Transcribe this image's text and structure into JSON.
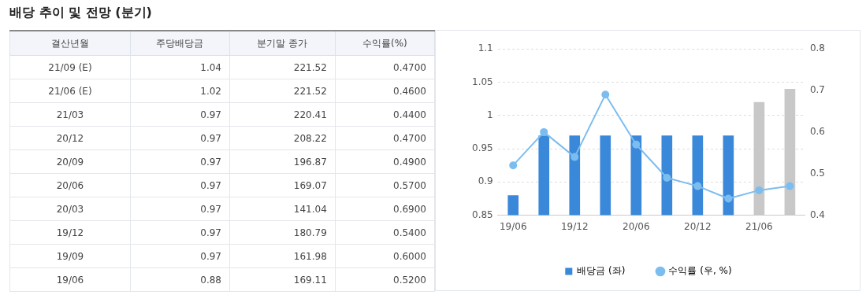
{
  "chart_data": [
    {
      "type": "other",
      "title": "배당 추이 및 전망 (분기)",
      "xlabel": "결산년월",
      "categories": [
        "21/09 (E)",
        "21/06 (E)",
        "21/03",
        "20/12",
        "20/09",
        "20/06",
        "20/03",
        "19/12",
        "19/09",
        "19/06"
      ],
      "series": [
        {
          "name": "주당배당금",
          "values": [
            1.04,
            1.02,
            0.97,
            0.97,
            0.97,
            0.97,
            0.97,
            0.97,
            0.97,
            0.88
          ],
          "value_labels": [
            "1.04",
            "1.02",
            "0.97",
            "0.97",
            "0.97",
            "0.97",
            "0.97",
            "0.97",
            "0.97",
            "0.88"
          ]
        },
        {
          "name": "분기말 종가",
          "values": [
            221.52,
            221.52,
            220.41,
            208.22,
            196.87,
            169.07,
            141.04,
            180.79,
            161.98,
            169.11
          ],
          "value_labels": [
            "221.52",
            "221.52",
            "220.41",
            "208.22",
            "196.87",
            "169.07",
            "141.04",
            "180.79",
            "161.98",
            "169.11"
          ]
        },
        {
          "name": "수익률(%)",
          "values": [
            0.47,
            0.46,
            0.44,
            0.47,
            0.49,
            0.57,
            0.69,
            0.54,
            0.6,
            0.52
          ],
          "value_labels": [
            "0.4700",
            "0.4600",
            "0.4400",
            "0.4700",
            "0.4900",
            "0.5700",
            "0.6900",
            "0.5400",
            "0.6000",
            "0.5200"
          ]
        }
      ]
    },
    {
      "type": "bar",
      "categories": [
        "19/06",
        null,
        "19/12",
        null,
        "20/06",
        null,
        "20/12",
        null,
        "21/06",
        null
      ],
      "series": [
        {
          "name": "배당금 (좌)",
          "type": "bar",
          "colors": [
            "#3a88d9",
            "#3a88d9",
            "#3a88d9",
            "#3a88d9",
            "#3a88d9",
            "#3a88d9",
            "#3a88d9",
            "#3a88d9",
            "#c8c8c8",
            "#c8c8c8"
          ],
          "values": [
            0.88,
            0.97,
            0.97,
            0.97,
            0.97,
            0.97,
            0.97,
            0.97,
            1.02,
            1.04
          ]
        },
        {
          "name": "수익률 (우, %)",
          "type": "line",
          "axis": "y2",
          "color": "#7cbdf0",
          "marker": "circle",
          "values": [
            0.52,
            0.6,
            0.54,
            0.69,
            0.57,
            0.49,
            0.47,
            0.44,
            0.46,
            0.47
          ]
        }
      ],
      "ylim": [
        0.85,
        1.1
      ],
      "yticks": [
        0.85,
        0.9,
        0.95,
        1,
        1.05,
        1.1
      ],
      "y2lim": [
        0.4,
        0.8
      ],
      "y2ticks": [
        0.4,
        0.5,
        0.6,
        0.7,
        0.8
      ],
      "grid": "y",
      "legend": "bottom"
    }
  ]
}
